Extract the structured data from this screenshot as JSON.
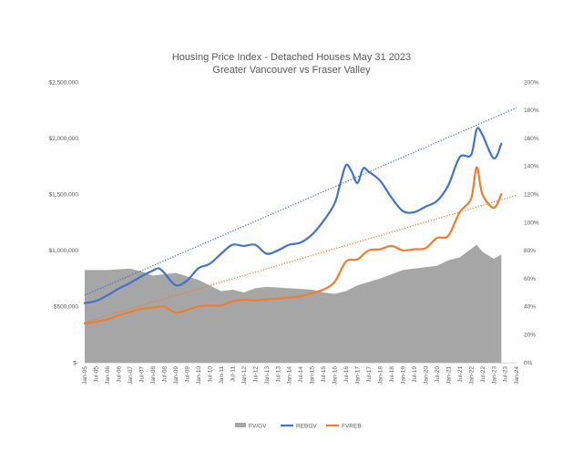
{
  "chart_data": {
    "type": "line",
    "title": "Housing Price Index - Detached Houses May 31 2023",
    "subtitle": "Greater Vancouver vs Fraser Valley",
    "y_left": {
      "ylim": [
        0,
        2500000
      ],
      "ticks": [
        {
          "value": 0,
          "label": "$-"
        },
        {
          "value": 500000,
          "label": "$500,000"
        },
        {
          "value": 1000000,
          "label": "$1,000,000"
        },
        {
          "value": 1500000,
          "label": "$1,500,000"
        },
        {
          "value": 2000000,
          "label": "$2,000,000"
        },
        {
          "value": 2500000,
          "label": "$2,500,000"
        }
      ]
    },
    "y_right": {
      "ylim": [
        0,
        2.0
      ],
      "ticks": [
        {
          "value": 0.0,
          "label": "0%"
        },
        {
          "value": 0.2,
          "label": "20%"
        },
        {
          "value": 0.4,
          "label": "40%"
        },
        {
          "value": 0.6,
          "label": "60%"
        },
        {
          "value": 0.8,
          "label": "80%"
        },
        {
          "value": 1.0,
          "label": "100%"
        },
        {
          "value": 1.2,
          "label": "120%"
        },
        {
          "value": 1.4,
          "label": "140%"
        },
        {
          "value": 1.6,
          "label": "160%"
        },
        {
          "value": 1.8,
          "label": "180%"
        },
        {
          "value": 2.0,
          "label": "200%"
        }
      ]
    },
    "x_range": [
      "2005-01",
      "2024-01"
    ],
    "x_ticks": [
      "Jan-05",
      "Jul-05",
      "Jan-06",
      "Jul-06",
      "Jan-07",
      "Jul-07",
      "Jan-08",
      "Jul-08",
      "Jan-09",
      "Jul-09",
      "Jan-10",
      "Jul-10",
      "Jan-11",
      "Jul-11",
      "Jan-12",
      "Jul-12",
      "Jan-13",
      "Jul-13",
      "Jan-14",
      "Jul-14",
      "Jan-15",
      "Jul-15",
      "Jan-16",
      "Jul-16",
      "Jan-17",
      "Jul-17",
      "Jan-18",
      "Jul-18",
      "Jan-19",
      "Jul-19",
      "Jan-20",
      "Jul-20",
      "Jan-21",
      "Jul-21",
      "Jan-22",
      "Jul-22",
      "Jan-23",
      "Jul-23",
      "Jan-24"
    ],
    "legend_position": "bottom",
    "grid": false,
    "series": [
      {
        "name": "FV/GV",
        "kind": "area",
        "axis": "right",
        "color": "#a6a6a6",
        "x": [
          "2005-01",
          "2006-01",
          "2007-01",
          "2007-07",
          "2008-01",
          "2008-07",
          "2009-01",
          "2010-01",
          "2011-01",
          "2011-07",
          "2012-01",
          "2012-07",
          "2013-01",
          "2014-01",
          "2015-01",
          "2015-07",
          "2016-01",
          "2016-07",
          "2017-01",
          "2018-01",
          "2019-01",
          "2020-01",
          "2020-07",
          "2021-01",
          "2021-07",
          "2022-01",
          "2022-04",
          "2022-07",
          "2023-01",
          "2023-05"
        ],
        "values": [
          0.66,
          0.66,
          0.67,
          0.65,
          0.62,
          0.63,
          0.64,
          0.59,
          0.51,
          0.52,
          0.5,
          0.53,
          0.54,
          0.53,
          0.52,
          0.5,
          0.49,
          0.51,
          0.55,
          0.6,
          0.66,
          0.68,
          0.69,
          0.73,
          0.75,
          0.81,
          0.84,
          0.79,
          0.74,
          0.77
        ]
      },
      {
        "name": "REBGV",
        "kind": "line",
        "axis": "left",
        "color": "#4472c4",
        "x": [
          "2005-01",
          "2005-07",
          "2006-01",
          "2006-07",
          "2007-01",
          "2007-07",
          "2008-01",
          "2008-04",
          "2008-07",
          "2009-01",
          "2009-07",
          "2010-01",
          "2010-07",
          "2011-01",
          "2011-07",
          "2012-01",
          "2012-07",
          "2013-01",
          "2013-07",
          "2014-01",
          "2014-07",
          "2015-01",
          "2015-07",
          "2016-01",
          "2016-04",
          "2016-07",
          "2016-10",
          "2017-01",
          "2017-04",
          "2017-07",
          "2018-01",
          "2018-07",
          "2019-01",
          "2019-07",
          "2020-01",
          "2020-07",
          "2021-01",
          "2021-07",
          "2022-01",
          "2022-04",
          "2022-07",
          "2023-01",
          "2023-05"
        ],
        "values": [
          530000,
          550000,
          600000,
          660000,
          710000,
          770000,
          820000,
          840000,
          800000,
          690000,
          730000,
          840000,
          880000,
          970000,
          1050000,
          1040000,
          1050000,
          970000,
          1000000,
          1050000,
          1070000,
          1140000,
          1260000,
          1420000,
          1600000,
          1760000,
          1700000,
          1600000,
          1730000,
          1700000,
          1620000,
          1470000,
          1350000,
          1340000,
          1390000,
          1440000,
          1580000,
          1830000,
          1850000,
          2080000,
          2030000,
          1820000,
          1950000
        ]
      },
      {
        "name": "FVREB",
        "kind": "line",
        "axis": "left",
        "color": "#ed7d31",
        "x": [
          "2005-01",
          "2005-07",
          "2006-01",
          "2006-07",
          "2007-01",
          "2007-07",
          "2008-01",
          "2008-07",
          "2009-01",
          "2009-07",
          "2010-01",
          "2010-07",
          "2011-01",
          "2011-07",
          "2012-01",
          "2012-07",
          "2013-01",
          "2013-07",
          "2014-01",
          "2014-07",
          "2015-01",
          "2015-07",
          "2016-01",
          "2016-07",
          "2017-01",
          "2017-07",
          "2018-01",
          "2018-07",
          "2019-01",
          "2019-07",
          "2020-01",
          "2020-07",
          "2021-01",
          "2021-07",
          "2022-01",
          "2022-04",
          "2022-07",
          "2023-01",
          "2023-05"
        ],
        "values": [
          350000,
          365000,
          385000,
          420000,
          450000,
          480000,
          490000,
          500000,
          445000,
          470000,
          500000,
          510000,
          510000,
          545000,
          560000,
          555000,
          565000,
          570000,
          580000,
          590000,
          620000,
          650000,
          720000,
          900000,
          920000,
          1000000,
          1010000,
          1040000,
          1000000,
          1010000,
          1020000,
          1110000,
          1130000,
          1340000,
          1460000,
          1740000,
          1500000,
          1380000,
          1500000
        ]
      },
      {
        "name": "",
        "kind": "trendline",
        "axis": "left",
        "color": "#4472c4",
        "x": [
          "2005-01",
          "2024-01"
        ],
        "values": [
          600000,
          2270000
        ]
      },
      {
        "name": "",
        "kind": "trendline",
        "axis": "left",
        "color": "#ed7d31",
        "x": [
          "2005-01",
          "2024-01"
        ],
        "values": [
          360000,
          1490000
        ]
      }
    ]
  }
}
